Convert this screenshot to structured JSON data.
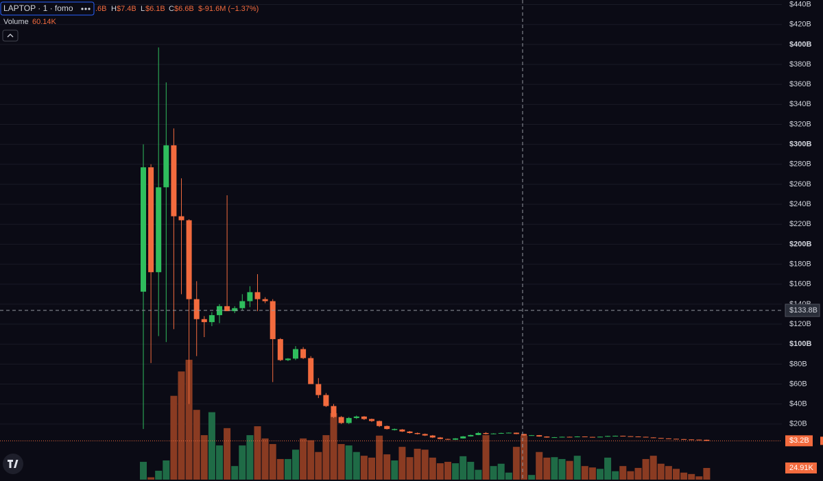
{
  "chart_data": {
    "type": "candlestick",
    "legend": {
      "symbol": "LAPTOP · 1 · fomo",
      "open_fragment": ".6B",
      "high_key": "H",
      "high": "$7.4B",
      "low_key": "L",
      "low": "$6.1B",
      "close_key": "C",
      "close": "$6.6B",
      "change": "$-91.6M (−1.37%)",
      "volume_label": "Volume",
      "volume_value": "60.14K"
    },
    "open": [
      152.5,
      277,
      172,
      257,
      299,
      228,
      224,
      145,
      125,
      122,
      129,
      138,
      133,
      136,
      143,
      152,
      145,
      143,
      105,
      84,
      85.5,
      95,
      86,
      60,
      49,
      38,
      27,
      21,
      26,
      27.5,
      25,
      23,
      18,
      14,
      14.5,
      12.5,
      11,
      10,
      8.5,
      6.5,
      5,
      4.3,
      5.6,
      7.6,
      9,
      11,
      10,
      10.5,
      11,
      11.3,
      10,
      8.5,
      8.8,
      7.5,
      6.5,
      6.8,
      7.2,
      6.9,
      7.5,
      7.1,
      6.9,
      7.3,
      8,
      8.2,
      7.8,
      7.5,
      7.2,
      6.6,
      6,
      5.6,
      5.2,
      4.9,
      4.6,
      4.4,
      4.2
    ],
    "high": [
      300,
      280,
      397,
      362,
      316,
      266,
      225,
      163,
      128,
      132,
      140,
      249,
      138,
      150,
      158,
      170,
      147,
      145,
      106,
      86,
      98,
      97,
      88,
      66,
      51,
      40,
      28,
      27,
      28.5,
      28,
      25.5,
      23.5,
      18.5,
      15.5,
      15,
      13,
      11.5,
      10.5,
      9,
      7,
      5.3,
      5.9,
      8,
      9.4,
      12,
      11.8,
      10.8,
      11.3,
      11.6,
      11.5,
      10.2,
      9,
      9,
      7.7,
      7,
      7.4,
      7.4,
      7.7,
      7.6,
      7.2,
      7.5,
      8.2,
      8.4,
      8.3,
      7.9,
      7.6,
      7.3,
      6.7,
      6.1,
      5.7,
      5.3,
      5,
      4.7,
      4.5,
      4.3
    ],
    "low": [
      15,
      81,
      108,
      102,
      115,
      150,
      40,
      88,
      107,
      118,
      121,
      134,
      131,
      134,
      137,
      133,
      141,
      62,
      83,
      83,
      84,
      85,
      60,
      46,
      37,
      26,
      20,
      20,
      25,
      24,
      22,
      17,
      14.5,
      13.5,
      12,
      10.5,
      9.5,
      8,
      6,
      4.7,
      4,
      4,
      5.4,
      7.4,
      8.8,
      9.6,
      9.8,
      10.2,
      10.8,
      9.8,
      8.2,
      8.3,
      7.3,
      6.3,
      6.3,
      6.6,
      6.7,
      6.8,
      7,
      6.7,
      6.8,
      7.2,
      7.9,
      7.7,
      7.4,
      7.1,
      6.5,
      5.9,
      5.5,
      5.1,
      4.8,
      4.5,
      4.3,
      4.1,
      3.1
    ],
    "close": [
      277,
      172,
      257,
      299,
      228,
      224,
      145,
      125,
      122,
      129,
      138,
      133,
      136,
      143,
      152,
      145,
      143,
      105,
      84,
      85.5,
      95,
      86,
      60,
      49,
      38,
      27,
      21,
      26,
      27.5,
      25,
      23,
      18,
      15,
      15,
      12.5,
      11,
      10,
      8.5,
      6.5,
      5,
      4.3,
      5.6,
      7.6,
      9,
      11,
      10,
      10.5,
      11,
      11.3,
      10,
      8.5,
      8.8,
      7.5,
      6.5,
      6.8,
      7.2,
      6.9,
      7.5,
      7.1,
      6.9,
      7.3,
      8,
      8.2,
      7.8,
      7.5,
      7.2,
      6.6,
      6,
      5.6,
      5.2,
      4.9,
      4.6,
      4.4,
      4.2,
      3.2
    ],
    "volume": [
      38,
      5,
      19,
      41,
      179,
      231,
      256,
      149,
      95,
      144,
      73,
      110,
      29,
      73,
      95,
      114,
      88,
      76,
      44,
      44,
      64,
      88,
      84,
      59,
      95,
      142,
      76,
      73,
      59,
      51,
      47,
      94,
      54,
      41,
      70,
      48,
      66,
      64,
      47,
      35,
      38,
      35,
      50,
      38,
      21,
      95,
      29,
      34,
      15,
      70,
      94,
      10,
      59,
      47,
      48,
      44,
      40,
      51,
      29,
      26,
      23,
      47,
      18,
      29,
      18,
      25,
      44,
      51,
      34,
      29,
      23,
      15,
      12,
      7,
      24.91
    ],
    "up_color": "#2fbd5d",
    "down_color": "#f36b3e",
    "up_volume_color": "#1f6b46",
    "down_volume_color": "#8a3b22",
    "ylim": [
      0,
      444.5
    ],
    "vlim": [
      0,
      300
    ],
    "yticks": [
      {
        "value": 20,
        "label": "$20B"
      },
      {
        "value": 40,
        "label": "$40B"
      },
      {
        "value": 60,
        "label": "$60B"
      },
      {
        "value": 80,
        "label": "$80B"
      },
      {
        "value": 100,
        "label": "$100B"
      },
      {
        "value": 120,
        "label": "$120B"
      },
      {
        "value": 140,
        "label": "$140B"
      },
      {
        "value": 160,
        "label": "$160B"
      },
      {
        "value": 180,
        "label": "$180B"
      },
      {
        "value": 200,
        "label": "$200B"
      },
      {
        "value": 220,
        "label": "$220B"
      },
      {
        "value": 240,
        "label": "$240B"
      },
      {
        "value": 260,
        "label": "$260B"
      },
      {
        "value": 280,
        "label": "$280B"
      },
      {
        "value": 300,
        "label": "$300B"
      },
      {
        "value": 320,
        "label": "$320B"
      },
      {
        "value": 340,
        "label": "$340B"
      },
      {
        "value": 360,
        "label": "$360B"
      },
      {
        "value": 380,
        "label": "$380B"
      },
      {
        "value": 400,
        "label": "$400B"
      },
      {
        "value": 420,
        "label": "$420B"
      },
      {
        "value": 440,
        "label": "$440B"
      }
    ],
    "grid": true,
    "crosshair_price": {
      "value": 133.8,
      "label": "$133.8B"
    },
    "current_price": {
      "value": 3.2,
      "label": "$3.2B"
    },
    "last_volume_label": "24.91K"
  }
}
